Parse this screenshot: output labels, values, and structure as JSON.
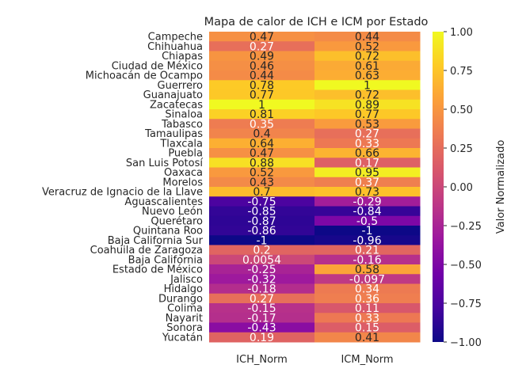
{
  "chart_data": {
    "type": "heatmap",
    "title": "Mapa de calor de ICH e ICM por Estado",
    "columns": [
      "ICH_Norm",
      "ICM_Norm"
    ],
    "rows": [
      {
        "state": "Campeche",
        "values": [
          0.47,
          0.44
        ],
        "labels": [
          "0.47",
          "0.44"
        ]
      },
      {
        "state": "Chihuahua",
        "values": [
          0.27,
          0.52
        ],
        "labels": [
          "0.27",
          "0.52"
        ]
      },
      {
        "state": "Chiapas",
        "values": [
          0.49,
          0.72
        ],
        "labels": [
          "0.49",
          "0.72"
        ]
      },
      {
        "state": "Ciudad de México",
        "values": [
          0.46,
          0.61
        ],
        "labels": [
          "0.46",
          "0.61"
        ]
      },
      {
        "state": "Michoacán de Ocampo",
        "values": [
          0.44,
          0.63
        ],
        "labels": [
          "0.44",
          "0.63"
        ]
      },
      {
        "state": "Guerrero",
        "values": [
          0.78,
          1.0
        ],
        "labels": [
          "0.78",
          "1"
        ]
      },
      {
        "state": "Guanajuato",
        "values": [
          0.77,
          0.72
        ],
        "labels": [
          "0.77",
          "0.72"
        ]
      },
      {
        "state": "Zacatecas",
        "values": [
          1.0,
          0.89
        ],
        "labels": [
          "1",
          "0.89"
        ]
      },
      {
        "state": "Sinaloa",
        "values": [
          0.81,
          0.77
        ],
        "labels": [
          "0.81",
          "0.77"
        ]
      },
      {
        "state": "Tabasco",
        "values": [
          0.35,
          0.53
        ],
        "labels": [
          "0.35",
          "0.53"
        ]
      },
      {
        "state": "Tamaulipas",
        "values": [
          0.4,
          0.27
        ],
        "labels": [
          "0.4",
          "0.27"
        ]
      },
      {
        "state": "Tlaxcala",
        "values": [
          0.64,
          0.33
        ],
        "labels": [
          "0.64",
          "0.33"
        ]
      },
      {
        "state": "Puebla",
        "values": [
          0.47,
          0.66
        ],
        "labels": [
          "0.47",
          "0.66"
        ]
      },
      {
        "state": "San Luis Potosí",
        "values": [
          0.88,
          0.17
        ],
        "labels": [
          "0.88",
          "0.17"
        ]
      },
      {
        "state": "Oaxaca",
        "values": [
          0.52,
          0.95
        ],
        "labels": [
          "0.52",
          "0.95"
        ]
      },
      {
        "state": "Morelos",
        "values": [
          0.43,
          0.37
        ],
        "labels": [
          "0.43",
          "0.37"
        ]
      },
      {
        "state": "Veracruz de Ignacio de la Llave",
        "values": [
          0.7,
          0.73
        ],
        "labels": [
          "0.7",
          "0.73"
        ]
      },
      {
        "state": "Aguascalientes",
        "values": [
          -0.75,
          -0.29
        ],
        "labels": [
          "-0.75",
          "-0.29"
        ]
      },
      {
        "state": "Nuevo León",
        "values": [
          -0.85,
          -0.84
        ],
        "labels": [
          "-0.85",
          "-0.84"
        ]
      },
      {
        "state": "Querétaro",
        "values": [
          -0.87,
          -0.5
        ],
        "labels": [
          "-0.87",
          "-0.5"
        ]
      },
      {
        "state": "Quintana Roo",
        "values": [
          -0.86,
          -1.0
        ],
        "labels": [
          "-0.86",
          "-1"
        ]
      },
      {
        "state": "Baja California Sur",
        "values": [
          -1.0,
          -0.96
        ],
        "labels": [
          "-1",
          "-0.96"
        ]
      },
      {
        "state": "Coahuila de Zaragoza",
        "values": [
          0.2,
          0.21
        ],
        "labels": [
          "0.2",
          "0.21"
        ]
      },
      {
        "state": "Baja California",
        "values": [
          0.0054,
          -0.16
        ],
        "labels": [
          "0.0054",
          "-0.16"
        ]
      },
      {
        "state": "Estado de México",
        "values": [
          -0.25,
          0.58
        ],
        "labels": [
          "-0.25",
          "0.58"
        ]
      },
      {
        "state": "Jalisco",
        "values": [
          -0.32,
          -0.097
        ],
        "labels": [
          "-0.32",
          "-0.097"
        ]
      },
      {
        "state": "Hidalgo",
        "values": [
          -0.18,
          0.34
        ],
        "labels": [
          "-0.18",
          "0.34"
        ]
      },
      {
        "state": "Durango",
        "values": [
          0.27,
          0.36
        ],
        "labels": [
          "0.27",
          "0.36"
        ]
      },
      {
        "state": "Colima",
        "values": [
          -0.15,
          0.11
        ],
        "labels": [
          "-0.15",
          "0.11"
        ]
      },
      {
        "state": "Nayarit",
        "values": [
          -0.17,
          0.33
        ],
        "labels": [
          "-0.17",
          "0.33"
        ]
      },
      {
        "state": "Sonora",
        "values": [
          -0.43,
          0.15
        ],
        "labels": [
          "-0.43",
          "0.15"
        ]
      },
      {
        "state": "Yucatán",
        "values": [
          0.19,
          0.41
        ],
        "labels": [
          "0.19",
          "0.41"
        ]
      }
    ],
    "colorbar": {
      "label": "Valor Normalizado",
      "range": [
        -1.0,
        1.0
      ],
      "ticks": [
        "1.00",
        "0.75",
        "0.50",
        "0.25",
        "0.00",
        "−0.25",
        "−0.50",
        "−0.75",
        "−1.00"
      ],
      "tick_values": [
        1.0,
        0.75,
        0.5,
        0.25,
        0.0,
        -0.25,
        -0.5,
        -0.75,
        -1.0
      ],
      "colormap": "plasma"
    },
    "grid": false,
    "colors": {
      "plasma_stops": [
        "#0d0887",
        "#46039f",
        "#7201a8",
        "#9c179e",
        "#bd3786",
        "#d8576b",
        "#ed7953",
        "#fb9f3a",
        "#fdca26",
        "#f0f921"
      ],
      "text_light": "#ffffff",
      "text_dark": "#262626"
    }
  }
}
